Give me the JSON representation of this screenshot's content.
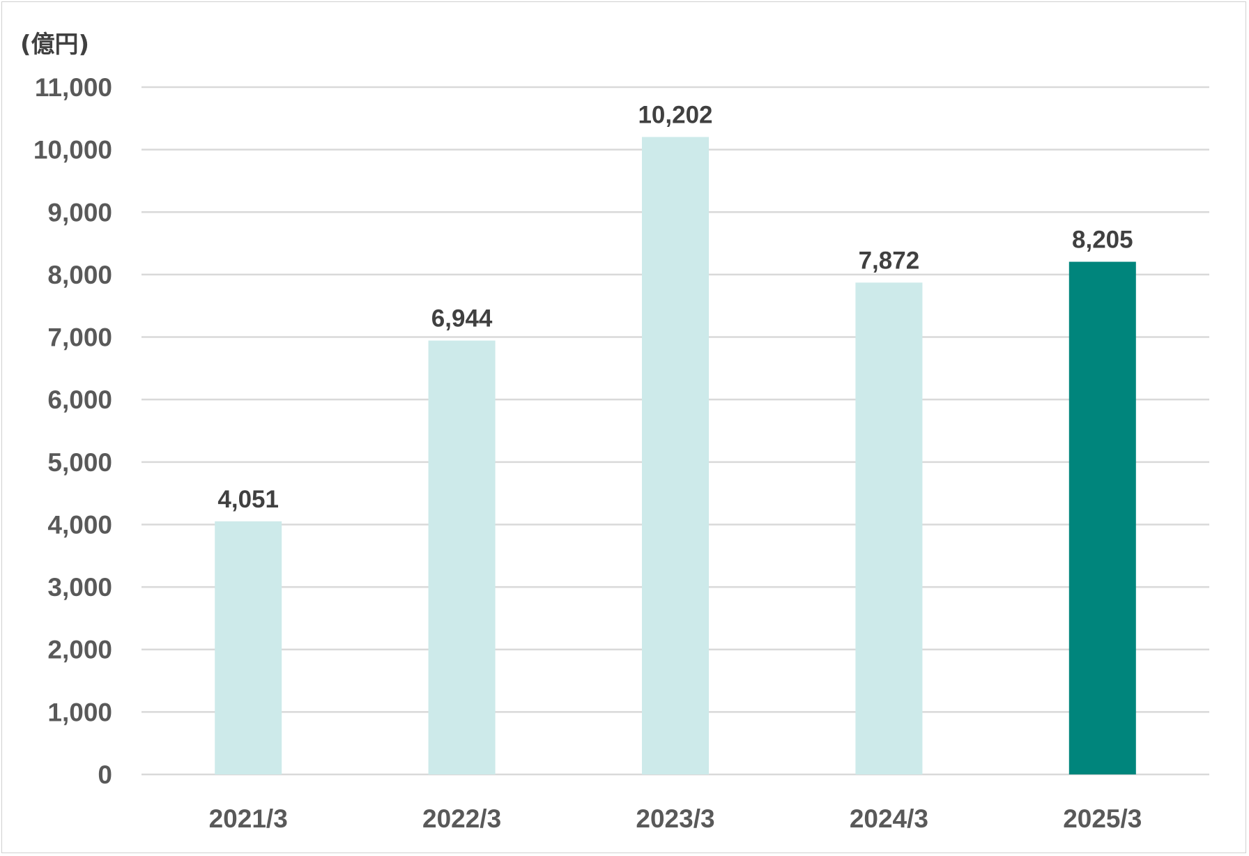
{
  "chart_data": {
    "type": "bar",
    "unit_label": "(億円)",
    "categories": [
      "2021/3",
      "2022/3",
      "2023/3",
      "2024/3",
      "2025/3"
    ],
    "values": [
      4051,
      6944,
      10202,
      7872,
      8205
    ],
    "value_labels": [
      "4,051",
      "6,944",
      "10,202",
      "7,872",
      "8,205"
    ],
    "ylim": [
      0,
      11000
    ],
    "yticks": [
      0,
      1000,
      2000,
      3000,
      4000,
      5000,
      6000,
      7000,
      8000,
      9000,
      10000,
      11000
    ],
    "ytick_labels": [
      "0",
      "1,000",
      "2,000",
      "3,000",
      "4,000",
      "5,000",
      "6,000",
      "7,000",
      "8,000",
      "9,000",
      "10,000",
      "11,000"
    ],
    "grid": true,
    "legend": "none",
    "colors": {
      "bar_default": "#cdeaea",
      "bar_highlight": "#00857c",
      "gridline": "#d9d9d9"
    },
    "highlight_index": 4
  }
}
